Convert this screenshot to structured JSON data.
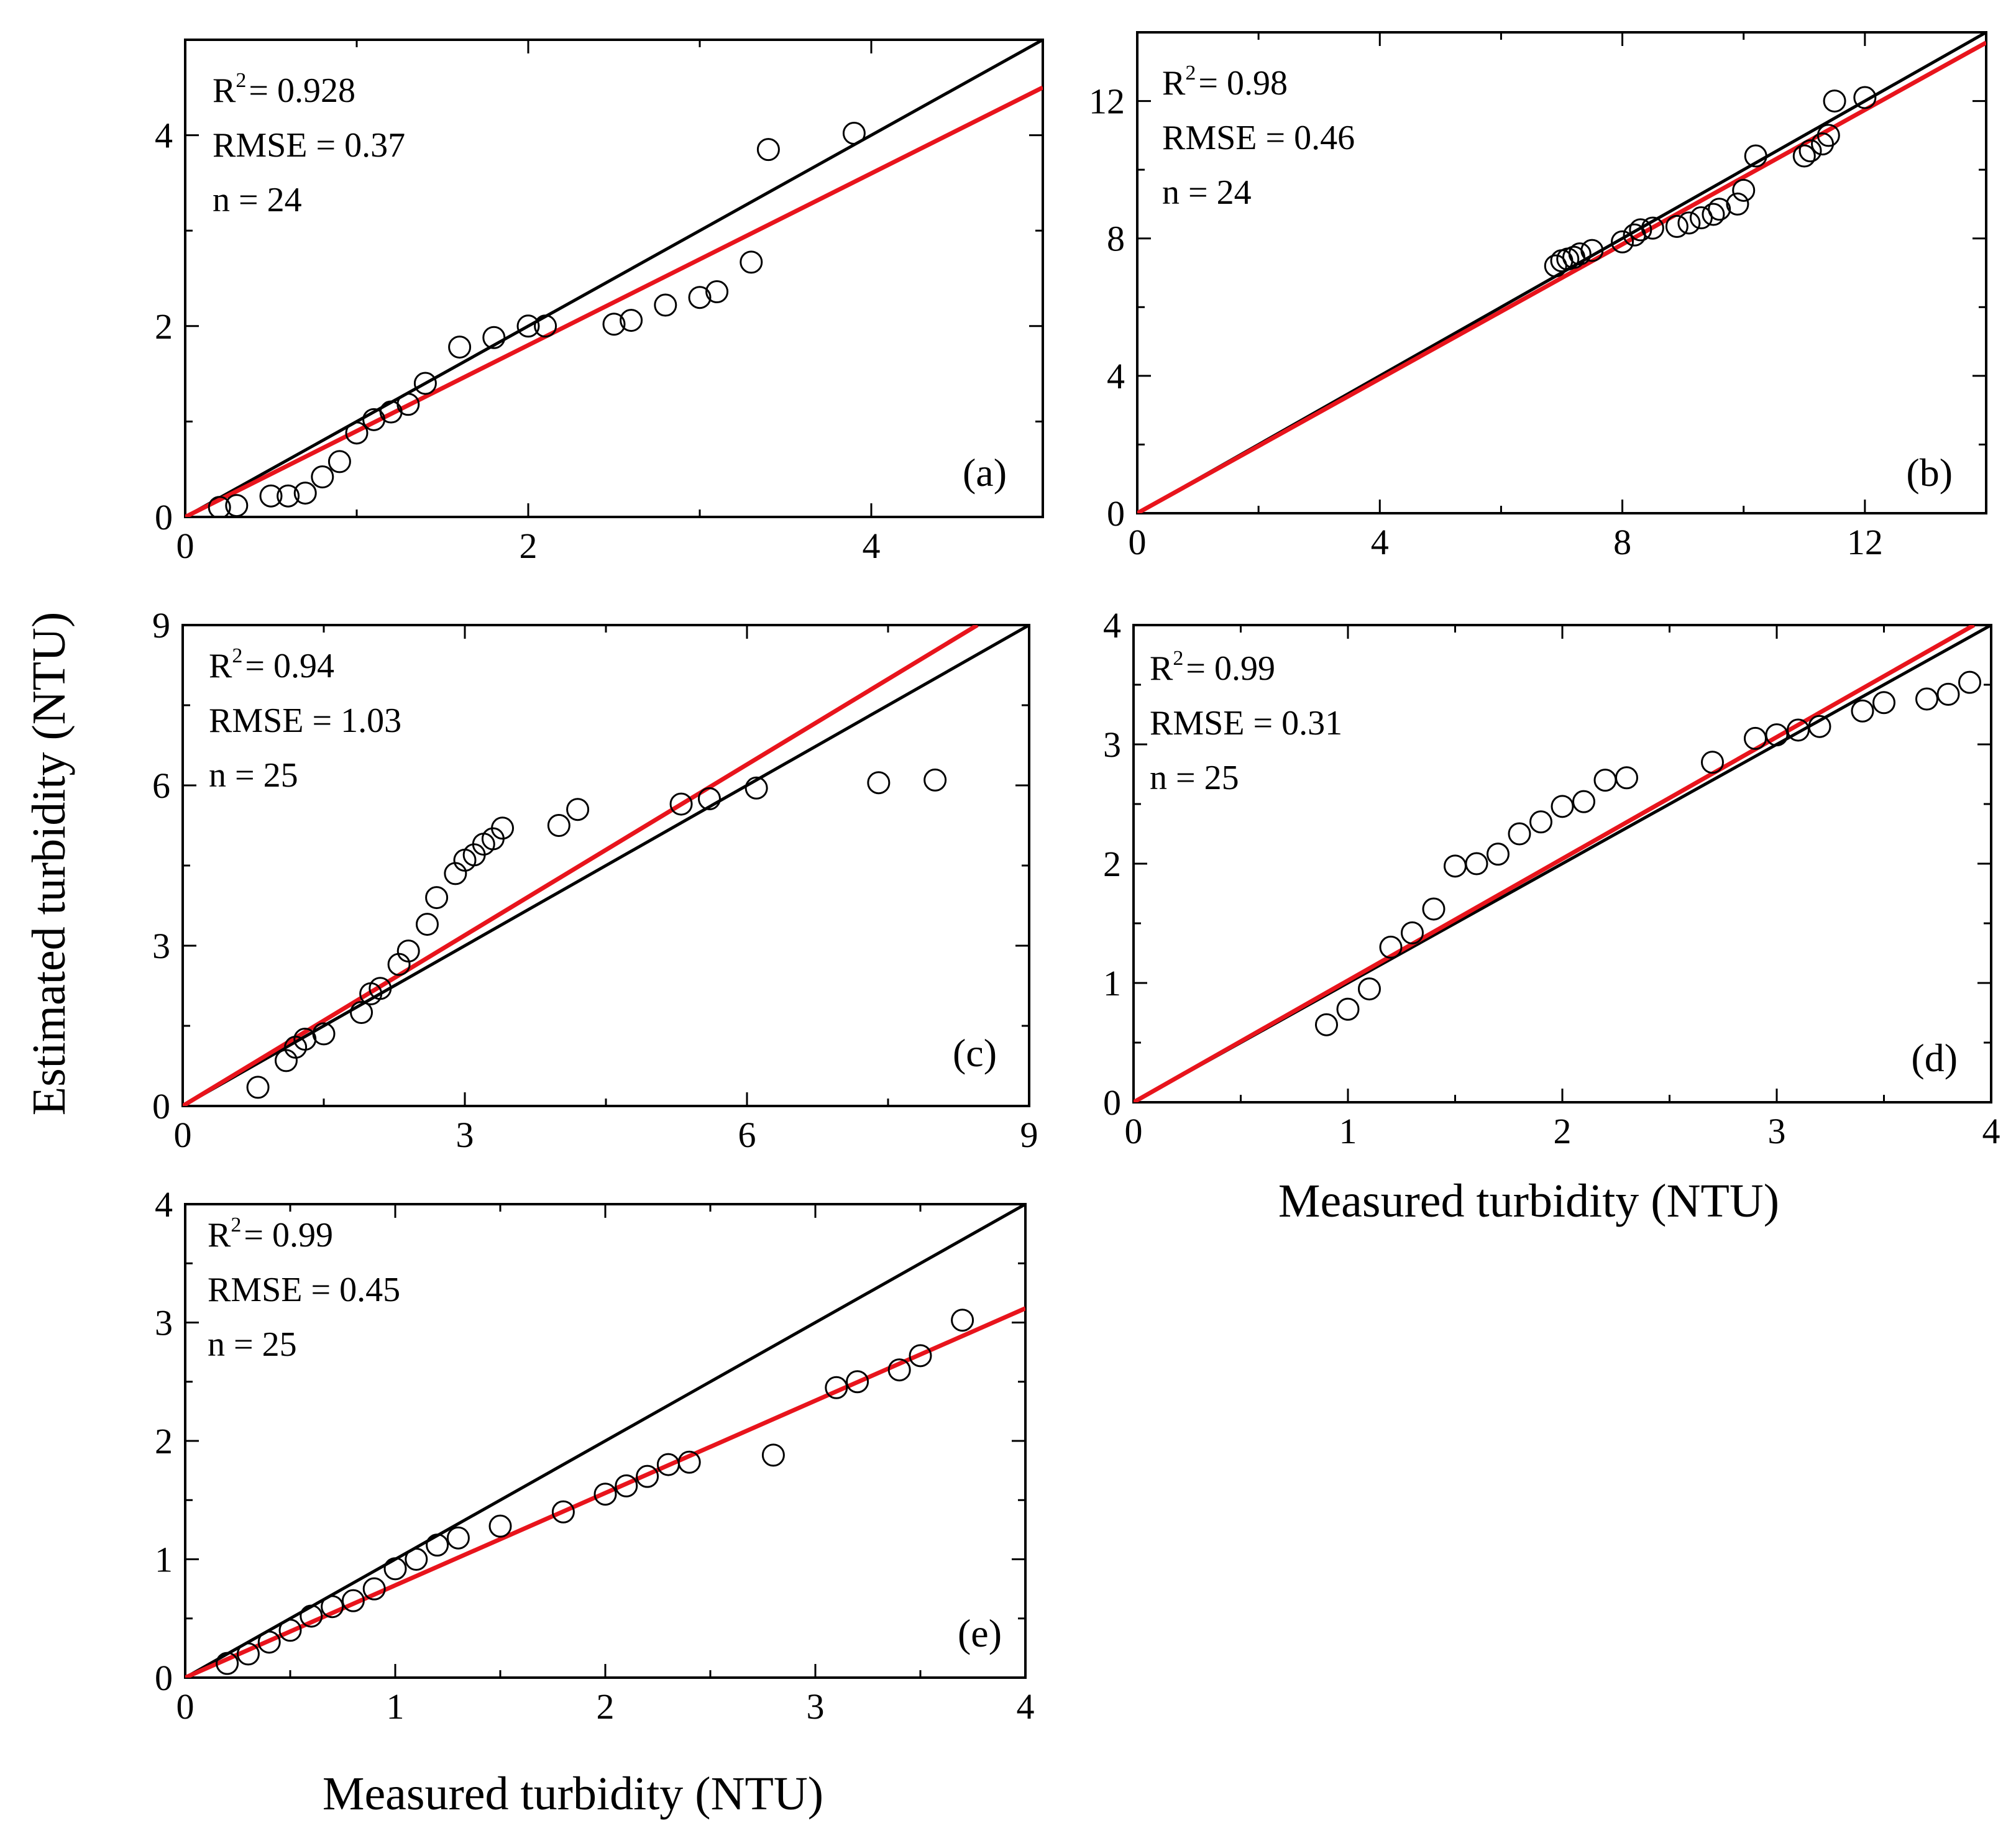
{
  "figure": {
    "y_axis_title": "Estimated turbidity (NTU)",
    "x_axis_title_upper": "Measured turbidity (NTU)",
    "x_axis_title_lower": "Measured turbidity (NTU)",
    "colors": {
      "one_to_one": "#000000",
      "fit": "#e8141c",
      "points": "#000000",
      "background": "#ffffff"
    }
  },
  "chart_data": [
    {
      "type": "scatter",
      "panel": "(a)",
      "xlim": [
        0,
        5
      ],
      "ylim": [
        0,
        5
      ],
      "xticks": [
        0,
        2,
        4
      ],
      "yticks": [
        0,
        2,
        4
      ],
      "stats": {
        "r2_prefix": "R",
        "r2_sup": "2",
        "r2_value": "= 0.928",
        "rmse": "RMSE = 0.37",
        "n": "n = 24"
      },
      "one_to_one": [
        [
          0,
          0
        ],
        [
          5,
          5
        ]
      ],
      "fit_line": [
        [
          0,
          0
        ],
        [
          5,
          4.5
        ]
      ],
      "points": [
        [
          0.2,
          0.1
        ],
        [
          0.3,
          0.12
        ],
        [
          0.5,
          0.22
        ],
        [
          0.6,
          0.22
        ],
        [
          0.7,
          0.25
        ],
        [
          0.8,
          0.42
        ],
        [
          0.9,
          0.58
        ],
        [
          1.0,
          0.88
        ],
        [
          1.1,
          1.02
        ],
        [
          1.2,
          1.1
        ],
        [
          1.3,
          1.18
        ],
        [
          1.4,
          1.4
        ],
        [
          1.6,
          1.78
        ],
        [
          1.8,
          1.88
        ],
        [
          2.0,
          2.0
        ],
        [
          2.1,
          2.0
        ],
        [
          2.5,
          2.02
        ],
        [
          2.6,
          2.06
        ],
        [
          2.8,
          2.22
        ],
        [
          3.0,
          2.3
        ],
        [
          3.1,
          2.36
        ],
        [
          3.3,
          2.67
        ],
        [
          3.4,
          3.85
        ],
        [
          3.9,
          4.02
        ]
      ]
    },
    {
      "type": "scatter",
      "panel": "(b)",
      "xlim": [
        0,
        14
      ],
      "ylim": [
        0,
        14
      ],
      "xticks": [
        0,
        4,
        8,
        12
      ],
      "yticks": [
        0,
        4,
        8,
        12
      ],
      "stats": {
        "r2_prefix": "R",
        "r2_sup": "2",
        "r2_value": "= 0.98",
        "rmse": "RMSE = 0.46",
        "n": "n = 24"
      },
      "one_to_one": [
        [
          0,
          0
        ],
        [
          14,
          14
        ]
      ],
      "fit_line": [
        [
          0,
          0
        ],
        [
          14,
          13.7
        ]
      ],
      "points": [
        [
          6.9,
          7.2
        ],
        [
          7.0,
          7.35
        ],
        [
          7.1,
          7.4
        ],
        [
          7.2,
          7.45
        ],
        [
          7.3,
          7.55
        ],
        [
          7.5,
          7.65
        ],
        [
          8.0,
          7.9
        ],
        [
          8.2,
          8.1
        ],
        [
          8.3,
          8.25
        ],
        [
          8.5,
          8.3
        ],
        [
          8.9,
          8.35
        ],
        [
          9.1,
          8.45
        ],
        [
          9.3,
          8.6
        ],
        [
          9.5,
          8.7
        ],
        [
          9.6,
          8.85
        ],
        [
          9.9,
          9.0
        ],
        [
          10.0,
          9.4
        ],
        [
          10.2,
          10.4
        ],
        [
          11.0,
          10.4
        ],
        [
          11.1,
          10.55
        ],
        [
          11.3,
          10.75
        ],
        [
          11.4,
          11.0
        ],
        [
          11.5,
          12.0
        ],
        [
          12.0,
          12.1
        ]
      ]
    },
    {
      "type": "scatter",
      "panel": "(c)",
      "xlim": [
        0,
        9
      ],
      "ylim": [
        0,
        9
      ],
      "xticks": [
        0,
        3,
        6,
        9
      ],
      "yticks": [
        0,
        3,
        6,
        9
      ],
      "stats": {
        "r2_prefix": "R",
        "r2_sup": "2",
        "r2_value": "= 0.94",
        "rmse": "RMSE = 1.03",
        "n": "n = 25"
      },
      "one_to_one": [
        [
          0,
          0
        ],
        [
          9,
          9
        ]
      ],
      "fit_line": [
        [
          0,
          0
        ],
        [
          8.45,
          9.0
        ]
      ],
      "points": [
        [
          0.8,
          0.35
        ],
        [
          1.1,
          0.85
        ],
        [
          1.2,
          1.1
        ],
        [
          1.3,
          1.25
        ],
        [
          1.5,
          1.35
        ],
        [
          1.9,
          1.75
        ],
        [
          2.0,
          2.1
        ],
        [
          2.1,
          2.2
        ],
        [
          2.3,
          2.65
        ],
        [
          2.4,
          2.9
        ],
        [
          2.6,
          3.4
        ],
        [
          2.7,
          3.9
        ],
        [
          2.9,
          4.35
        ],
        [
          3.0,
          4.6
        ],
        [
          3.1,
          4.7
        ],
        [
          3.2,
          4.9
        ],
        [
          3.3,
          5.0
        ],
        [
          3.4,
          5.2
        ],
        [
          4.0,
          5.25
        ],
        [
          4.2,
          5.55
        ],
        [
          5.3,
          5.65
        ],
        [
          5.6,
          5.75
        ],
        [
          6.1,
          5.95
        ],
        [
          7.4,
          6.05
        ],
        [
          8.0,
          6.1
        ]
      ]
    },
    {
      "type": "scatter",
      "panel": "(d)",
      "xlim": [
        0,
        4
      ],
      "ylim": [
        0,
        4
      ],
      "xticks": [
        0,
        1,
        2,
        3,
        4
      ],
      "yticks": [
        0,
        1,
        2,
        3,
        4
      ],
      "stats": {
        "r2_prefix": "R",
        "r2_sup": "2",
        "r2_value": "= 0.99",
        "rmse": "RMSE = 0.31",
        "n": "n = 25"
      },
      "one_to_one": [
        [
          0,
          0
        ],
        [
          4,
          4
        ]
      ],
      "fit_line": [
        [
          0,
          0
        ],
        [
          3.92,
          4.0
        ]
      ],
      "points": [
        [
          0.9,
          0.65
        ],
        [
          1.0,
          0.78
        ],
        [
          1.1,
          0.95
        ],
        [
          1.2,
          1.3
        ],
        [
          1.3,
          1.42
        ],
        [
          1.4,
          1.62
        ],
        [
          1.5,
          1.98
        ],
        [
          1.6,
          2.0
        ],
        [
          1.7,
          2.08
        ],
        [
          1.8,
          2.25
        ],
        [
          1.9,
          2.35
        ],
        [
          2.0,
          2.48
        ],
        [
          2.1,
          2.52
        ],
        [
          2.2,
          2.7
        ],
        [
          2.3,
          2.72
        ],
        [
          2.7,
          2.85
        ],
        [
          2.9,
          3.05
        ],
        [
          3.0,
          3.08
        ],
        [
          3.1,
          3.12
        ],
        [
          3.2,
          3.15
        ],
        [
          3.4,
          3.28
        ],
        [
          3.5,
          3.35
        ],
        [
          3.7,
          3.38
        ],
        [
          3.8,
          3.42
        ],
        [
          3.9,
          3.52
        ]
      ]
    },
    {
      "type": "scatter",
      "panel": "(e)",
      "xlim": [
        0,
        4
      ],
      "ylim": [
        0,
        4
      ],
      "xticks": [
        0,
        1,
        2,
        3,
        4
      ],
      "yticks": [
        0,
        1,
        2,
        3,
        4
      ],
      "stats": {
        "r2_prefix": "R",
        "r2_sup": "2",
        "r2_value": "= 0.99",
        "rmse": "RMSE = 0.45",
        "n": "n = 25"
      },
      "one_to_one": [
        [
          0,
          0
        ],
        [
          4,
          4
        ]
      ],
      "fit_line": [
        [
          0,
          0
        ],
        [
          4,
          3.12
        ]
      ],
      "points": [
        [
          0.2,
          0.12
        ],
        [
          0.3,
          0.2
        ],
        [
          0.4,
          0.3
        ],
        [
          0.5,
          0.4
        ],
        [
          0.6,
          0.52
        ],
        [
          0.7,
          0.6
        ],
        [
          0.8,
          0.65
        ],
        [
          0.9,
          0.75
        ],
        [
          1.0,
          0.92
        ],
        [
          1.1,
          1.0
        ],
        [
          1.2,
          1.12
        ],
        [
          1.3,
          1.18
        ],
        [
          1.5,
          1.28
        ],
        [
          1.8,
          1.4
        ],
        [
          2.0,
          1.55
        ],
        [
          2.1,
          1.62
        ],
        [
          2.2,
          1.7
        ],
        [
          2.3,
          1.8
        ],
        [
          2.4,
          1.82
        ],
        [
          2.8,
          1.88
        ],
        [
          3.1,
          2.45
        ],
        [
          3.2,
          2.5
        ],
        [
          3.4,
          2.6
        ],
        [
          3.5,
          2.72
        ],
        [
          3.7,
          3.02
        ]
      ]
    }
  ]
}
